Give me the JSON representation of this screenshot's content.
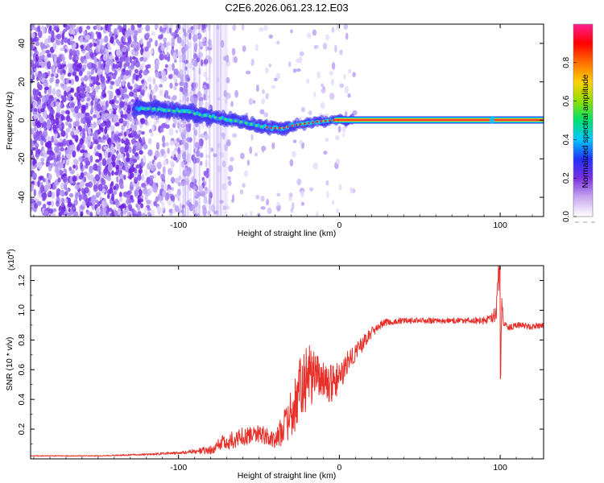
{
  "title": "C2E6.2026.061.23.12.E03",
  "colors": {
    "accent": "#e8302a",
    "spectrogram_cloud": "#7a3de8",
    "background": "#ffffff"
  },
  "chart_data": [
    {
      "type": "heatmap",
      "title": "C2E6.2026.061.23.12.E03",
      "xlabel": "Height of straight line (km)",
      "ylabel": "Frequency (Hz)",
      "xlim": [
        -192,
        127
      ],
      "ylim": [
        -50,
        50
      ],
      "x_ticks": [
        -100,
        0,
        100
      ],
      "x_tick_labels": [
        "-100",
        "0",
        "100"
      ],
      "y_ticks": [
        -40,
        -20,
        0,
        20,
        40
      ],
      "y_tick_labels": [
        "-40",
        "-20",
        "0",
        "20",
        "40"
      ],
      "colorbar": {
        "label": "Normalized spectral amplitude",
        "range": [
          0,
          1
        ],
        "ticks": [
          0.0,
          0.2,
          0.4,
          0.6,
          0.8
        ],
        "tick_labels": [
          "0.0",
          "0.2",
          "0.4",
          "0.6",
          "0.8"
        ],
        "colormap": [
          "#ffffff",
          "#c8a8f0",
          "#7a2fe0",
          "#2233ff",
          "#00c8ff",
          "#00e070",
          "#90e000",
          "#ffd000",
          "#ff7000",
          "#ff0000",
          "#ff2090"
        ]
      },
      "ridge": {
        "x": [
          -125,
          -115,
          -105,
          -95,
          -88,
          -80,
          -70,
          -60,
          -50,
          -42,
          -35,
          -28,
          -20,
          -12,
          -5,
          0,
          10,
          30,
          60,
          95,
          127
        ],
        "frequency": [
          6,
          6,
          5,
          4.5,
          3,
          2,
          0.5,
          -1,
          -3,
          -4,
          -4,
          -2.5,
          -1.5,
          -0.5,
          0,
          0.2,
          0.2,
          0.2,
          0.2,
          0.2,
          0.2
        ]
      }
    },
    {
      "type": "line",
      "xlabel": "Height of straight line (km)",
      "ylabel": "SNR (10 * v/v)",
      "y_scale_label": "(x10",
      "y_scale_exponent": "4",
      "y_scale_suffix": ")",
      "xlim": [
        -192,
        127
      ],
      "ylim": [
        0,
        1.3
      ],
      "x_ticks": [
        -100,
        0,
        100
      ],
      "x_tick_labels": [
        "-100",
        "0",
        "100"
      ],
      "y_ticks": [
        0.2,
        0.4,
        0.6,
        0.8,
        1.0,
        1.2
      ],
      "y_tick_labels": [
        "0.2",
        "0.4",
        "0.6",
        "0.8",
        "1.0",
        "1.2"
      ],
      "series": [
        {
          "name": "SNR",
          "color": "#e8302a",
          "x": [
            -192,
            -150,
            -120,
            -100,
            -90,
            -80,
            -70,
            -60,
            -50,
            -40,
            -35,
            -30,
            -25,
            -20,
            -15,
            -10,
            -5,
            0,
            5,
            10,
            15,
            20,
            25,
            30,
            40,
            50,
            60,
            70,
            80,
            90,
            95,
            98,
            99,
            100,
            101,
            102,
            105,
            110,
            120,
            127
          ],
          "y": [
            0.02,
            0.02,
            0.03,
            0.04,
            0.05,
            0.06,
            0.12,
            0.15,
            0.18,
            0.12,
            0.2,
            0.3,
            0.45,
            0.55,
            0.6,
            0.55,
            0.5,
            0.55,
            0.65,
            0.72,
            0.78,
            0.85,
            0.9,
            0.92,
            0.93,
            0.93,
            0.93,
            0.93,
            0.93,
            0.93,
            0.95,
            1.02,
            1.3,
            0.55,
            1.05,
            0.92,
            0.88,
            0.9,
            0.89,
            0.9
          ],
          "noise": [
            0.003,
            0.003,
            0.006,
            0.01,
            0.015,
            0.03,
            0.06,
            0.06,
            0.07,
            0.05,
            0.12,
            0.18,
            0.22,
            0.22,
            0.2,
            0.17,
            0.13,
            0.1,
            0.08,
            0.06,
            0.05,
            0.04,
            0.03,
            0.025,
            0.02,
            0.02,
            0.02,
            0.02,
            0.02,
            0.025,
            0.04,
            0.1,
            0.05,
            0.02,
            0.05,
            0.03,
            0.02,
            0.02,
            0.02,
            0.02
          ]
        }
      ]
    }
  ]
}
